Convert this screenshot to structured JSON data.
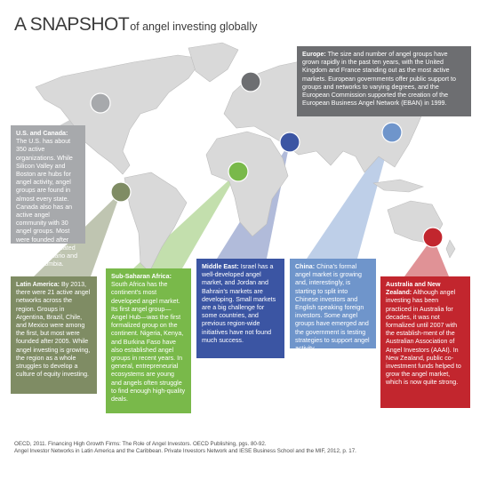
{
  "title": {
    "main": "A SNAPSHOT",
    "sub": "of angel investing globally"
  },
  "colors": {
    "europe": "#6d6e71",
    "us_canada": "#a7a9ac",
    "latin_america": "#7f8c64",
    "sub_saharan_africa": "#79b94a",
    "middle_east": "#3b55a3",
    "china": "#6f95cb",
    "australia_nz": "#c2262e",
    "land": "#d9d9d9"
  },
  "regions": {
    "europe": {
      "heading": "Europe:",
      "text": "The size and number of angel groups have grown rapidly in the past ten years, with the United Kingdom and France standing out as the most active markets. European governments offer public support to groups and networks to varying degrees, and the European Commission supported the creation of the European Business Angel Network (EBAN) in 1999."
    },
    "us_canada": {
      "heading": "U.S. and Canada:",
      "text": "The U.S. has about 350 active organizations. While Silicon Valley and Boston are hubs for angel activity, angel groups are found in almost every state. Canada also has an active angel community with 30 angel groups. Most were founded after 2008 and are located in or near Ontario and British Colombia."
    },
    "latin_america": {
      "heading": "Latin America:",
      "text": "By 2013, there were 21 active angel networks across the region. Groups in Argentina, Brazil, Chile, and Mexico were among the first, but most were founded after 2005. While angel investing is growing, the region as a whole struggles to develop a culture of equity investing."
    },
    "sub_saharan_africa": {
      "heading": "Sub-Saharan Africa:",
      "text": "South Africa has the continent's most developed angel market. Its first angel group—Angel Hub—was the first formalized group on the continent. Nigeria, Kenya, and Burkina Faso have also established angel groups in recent years. In general, entrepreneurial ecosystems are young and angels often struggle to find enough high-quality deals."
    },
    "middle_east": {
      "heading": "Middle East:",
      "text": "Israel has a well-developed angel market, and Jordan and Bahrain's markets are developing. Small markets are a big challenge for some countries, and previous region-wide initiatives have not found much success."
    },
    "china": {
      "heading": "China:",
      "text": "China's formal angel market is growing and, interestingly, is starting to split into Chinese investors and English speaking foreign investors. Some angel groups have emerged and the government is testing strategies to support angel activity."
    },
    "australia_nz": {
      "heading": "Australia and New Zealand:",
      "text": "Although angel investing has been practiced in Australia for decades, it was not formalized until 2007 with the establish-ment of the Australian Association of Angel Investors (AAAI). In New Zealand, public co-investment funds helped to grow the angel market, which is now quite strong."
    }
  },
  "references": [
    "OECD, 2011. Financing High Growth Firms: The Role of Angel Investors. OECD Publishing, pgs. 80-92.",
    "Angel Investor Networks in Latin America and the Caribbean. Private Investors Network and IESE Business School and the MIF, 2012, p. 17."
  ]
}
